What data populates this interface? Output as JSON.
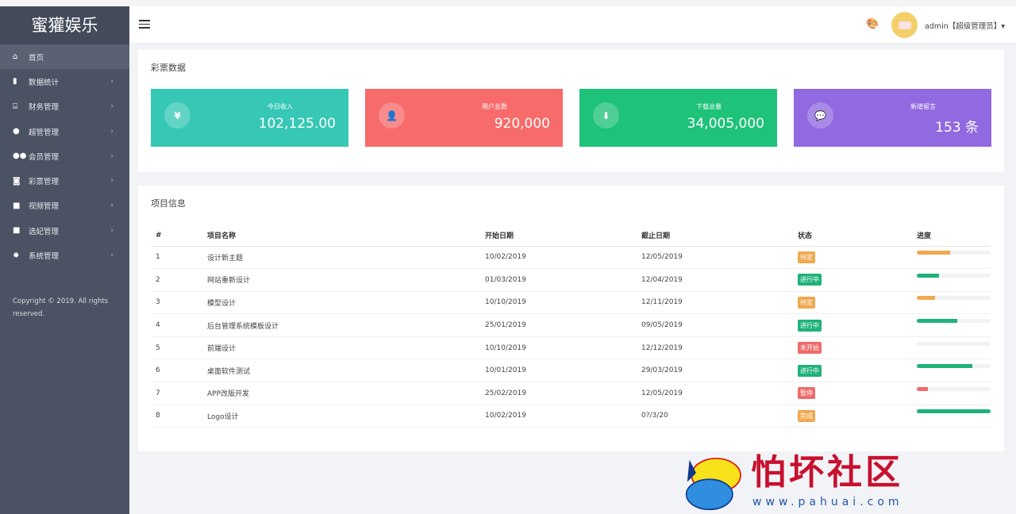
{
  "sidebar": {
    "logo": "蜜獾娱乐",
    "items": [
      {
        "label": "首页",
        "icon": "home-icon",
        "glyph": "⌂"
      },
      {
        "label": "数据统计",
        "icon": "bar-chart-icon",
        "glyph": "▮"
      },
      {
        "label": "财务管理",
        "icon": "bank-icon",
        "glyph": "⌸"
      },
      {
        "label": "超管管理",
        "icon": "user-icon",
        "glyph": "●"
      },
      {
        "label": "会员管理",
        "icon": "users-icon",
        "glyph": "●●"
      },
      {
        "label": "彩票管理",
        "icon": "gamepad-icon",
        "glyph": "◙"
      },
      {
        "label": "视频管理",
        "icon": "video-icon",
        "glyph": "■"
      },
      {
        "label": "选妃管理",
        "icon": "video-icon",
        "glyph": "■"
      },
      {
        "label": "系统管理",
        "icon": "gear-icon",
        "glyph": "✹"
      }
    ],
    "chevron": "›",
    "copyright": "Copyright © 2019. All rights reserved."
  },
  "header": {
    "user": "admin【超级管理员】▾",
    "palette_glyph": "🎨"
  },
  "stats": {
    "title": "彩票数据",
    "cards": [
      {
        "label": "今日收入",
        "value": "102,125.00",
        "glyph": "¥",
        "icon": "yen-icon",
        "color": "#36c8b5"
      },
      {
        "label": "用户总数",
        "value": "920,000",
        "glyph": "👤",
        "icon": "user-icon",
        "color": "#f76b6b"
      },
      {
        "label": "下载总量",
        "value": "34,005,000",
        "glyph": "⬇",
        "icon": "download-icon",
        "color": "#1ec278"
      },
      {
        "label": "新增留言",
        "value": "153 条",
        "glyph": "💬",
        "icon": "comment-icon",
        "color": "#9169e0"
      }
    ]
  },
  "projects": {
    "title": "项目信息",
    "columns": [
      "#",
      "项目名称",
      "开始日期",
      "截止日期",
      "状态",
      "进度"
    ],
    "rows": [
      {
        "n": "1",
        "name": "设计新主题",
        "start": "10/02/2019",
        "end": "12/05/2019",
        "status": "待定",
        "color": "#f0a850",
        "progress": 45
      },
      {
        "n": "2",
        "name": "网站重新设计",
        "start": "01/03/2019",
        "end": "12/04/2019",
        "status": "进行中",
        "color": "#1fb27a",
        "progress": 30
      },
      {
        "n": "3",
        "name": "模型设计",
        "start": "10/10/2019",
        "end": "12/11/2019",
        "status": "待定",
        "color": "#f0a850",
        "progress": 25
      },
      {
        "n": "4",
        "name": "后台管理系统模板设计",
        "start": "25/01/2019",
        "end": "09/05/2019",
        "status": "进行中",
        "color": "#1fb27a",
        "progress": 55
      },
      {
        "n": "5",
        "name": "前端设计",
        "start": "10/10/2019",
        "end": "12/12/2019",
        "status": "未开始",
        "color": "#ee6a6a",
        "progress": 0
      },
      {
        "n": "6",
        "name": "桌面软件测试",
        "start": "10/01/2019",
        "end": "29/03/2019",
        "status": "进行中",
        "color": "#1fb27a",
        "progress": 75
      },
      {
        "n": "7",
        "name": "APP改版开发",
        "start": "25/02/2019",
        "end": "12/05/2019",
        "status": "暂停",
        "color": "#ee6a6a",
        "progress": 15
      },
      {
        "n": "8",
        "name": "Logo设计",
        "start": "10/02/2019",
        "end": "0?/3/20",
        "status": "完成",
        "color": "#f0a850",
        "progress": 100,
        "bar_color": "#1fb27a"
      }
    ]
  },
  "watermark": {
    "text": "怕坏社区",
    "url": "www.pahuai.com"
  }
}
